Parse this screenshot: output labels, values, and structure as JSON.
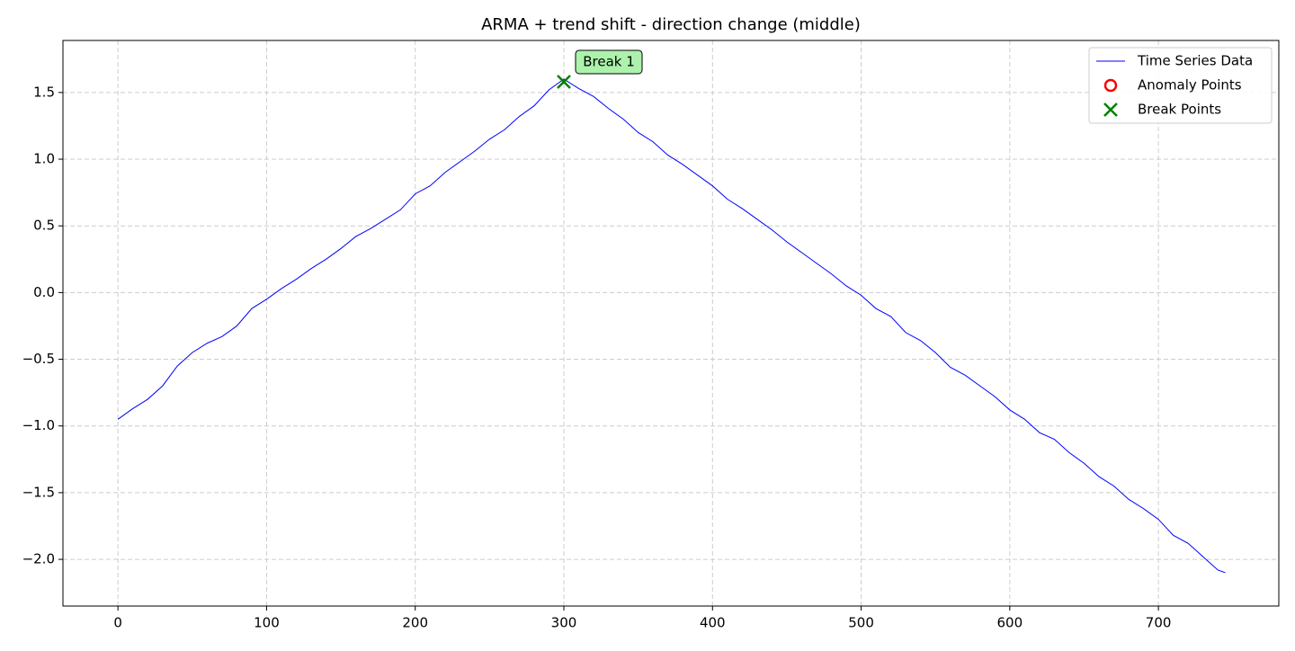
{
  "chart_data": {
    "type": "line",
    "title": "ARMA + trend shift - direction change (middle)",
    "xlim": [
      -37,
      781
    ],
    "ylim": [
      -2.35,
      1.89
    ],
    "xticks": [
      0,
      100,
      200,
      300,
      400,
      500,
      600,
      700
    ],
    "yticks": [
      {
        "value": -2.0,
        "label": "−2.0"
      },
      {
        "value": -1.5,
        "label": "−1.5"
      },
      {
        "value": -1.0,
        "label": "−1.0"
      },
      {
        "value": -0.5,
        "label": "−0.5"
      },
      {
        "value": 0.0,
        "label": "0.0"
      },
      {
        "value": 0.5,
        "label": "0.5"
      },
      {
        "value": 1.0,
        "label": "1.0"
      },
      {
        "value": 1.5,
        "label": "1.5"
      }
    ],
    "grid": true,
    "legend": "upper right",
    "series": [
      {
        "name": "Time Series Data",
        "color": "#0000ff",
        "kind": "line",
        "x": [
          0,
          10,
          20,
          30,
          40,
          50,
          60,
          70,
          80,
          90,
          100,
          110,
          120,
          130,
          140,
          150,
          160,
          170,
          180,
          190,
          200,
          210,
          220,
          230,
          240,
          250,
          260,
          270,
          280,
          290,
          300,
          310,
          320,
          330,
          340,
          350,
          360,
          370,
          380,
          390,
          400,
          410,
          420,
          430,
          440,
          450,
          460,
          470,
          480,
          490,
          500,
          510,
          520,
          530,
          540,
          550,
          560,
          570,
          580,
          590,
          600,
          610,
          620,
          630,
          640,
          650,
          660,
          670,
          680,
          690,
          700,
          710,
          720,
          730,
          740,
          745
        ],
        "values": [
          -0.95,
          -0.87,
          -0.8,
          -0.7,
          -0.55,
          -0.45,
          -0.38,
          -0.33,
          -0.25,
          -0.12,
          -0.05,
          0.03,
          0.1,
          0.18,
          0.25,
          0.33,
          0.42,
          0.48,
          0.55,
          0.62,
          0.74,
          0.8,
          0.9,
          0.98,
          1.06,
          1.15,
          1.22,
          1.32,
          1.4,
          1.52,
          1.6,
          1.53,
          1.47,
          1.38,
          1.3,
          1.2,
          1.13,
          1.03,
          0.96,
          0.88,
          0.8,
          0.7,
          0.63,
          0.55,
          0.47,
          0.38,
          0.3,
          0.22,
          0.14,
          0.05,
          -0.02,
          -0.12,
          -0.18,
          -0.3,
          -0.36,
          -0.45,
          -0.56,
          -0.62,
          -0.7,
          -0.78,
          -0.88,
          -0.95,
          -1.05,
          -1.1,
          -1.2,
          -1.28,
          -1.38,
          -1.45,
          -1.55,
          -1.62,
          -1.7,
          -1.82,
          -1.88,
          -1.98,
          -2.08,
          -2.1
        ]
      },
      {
        "name": "Anomaly Points",
        "color": "#ff0000",
        "kind": "circle",
        "x": [],
        "values": []
      },
      {
        "name": "Break Points",
        "color": "#008000",
        "kind": "cross",
        "x": [
          300
        ],
        "values": [
          1.58
        ],
        "labels": [
          "Break 1"
        ]
      }
    ]
  }
}
